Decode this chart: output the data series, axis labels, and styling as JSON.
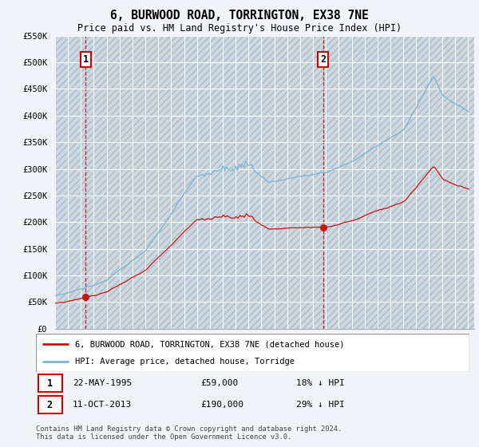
{
  "title": "6, BURWOOD ROAD, TORRINGTON, EX38 7NE",
  "subtitle": "Price paid vs. HM Land Registry's House Price Index (HPI)",
  "hpi_color": "#7ab5d5",
  "price_color": "#cc1111",
  "fig_bg_color": "#f0f4f8",
  "plot_bg_color": "#dce8f0",
  "hatch_bg_color": "#cdd8e0",
  "grid_color": "#ffffff",
  "vline_color": "#cc0000",
  "ylim": [
    0,
    550000
  ],
  "yticks": [
    0,
    50000,
    100000,
    150000,
    200000,
    250000,
    300000,
    350000,
    400000,
    450000,
    500000,
    550000
  ],
  "ytick_labels": [
    "£0",
    "£50K",
    "£100K",
    "£150K",
    "£200K",
    "£250K",
    "£300K",
    "£350K",
    "£400K",
    "£450K",
    "£500K",
    "£550K"
  ],
  "xmin": 1993,
  "xmax": 2025.5,
  "sale1_year": 1995.37,
  "sale1_price": 59000,
  "sale2_year": 2013.79,
  "sale2_price": 190000,
  "legend_line1": "6, BURWOOD ROAD, TORRINGTON, EX38 7NE (detached house)",
  "legend_line2": "HPI: Average price, detached house, Torridge",
  "ann1_date": "22-MAY-1995",
  "ann1_price": "£59,000",
  "ann1_hpi": "18% ↓ HPI",
  "ann2_date": "11-OCT-2013",
  "ann2_price": "£190,000",
  "ann2_hpi": "29% ↓ HPI",
  "footnote1": "Contains HM Land Registry data © Crown copyright and database right 2024.",
  "footnote2": "This data is licensed under the Open Government Licence v3.0."
}
